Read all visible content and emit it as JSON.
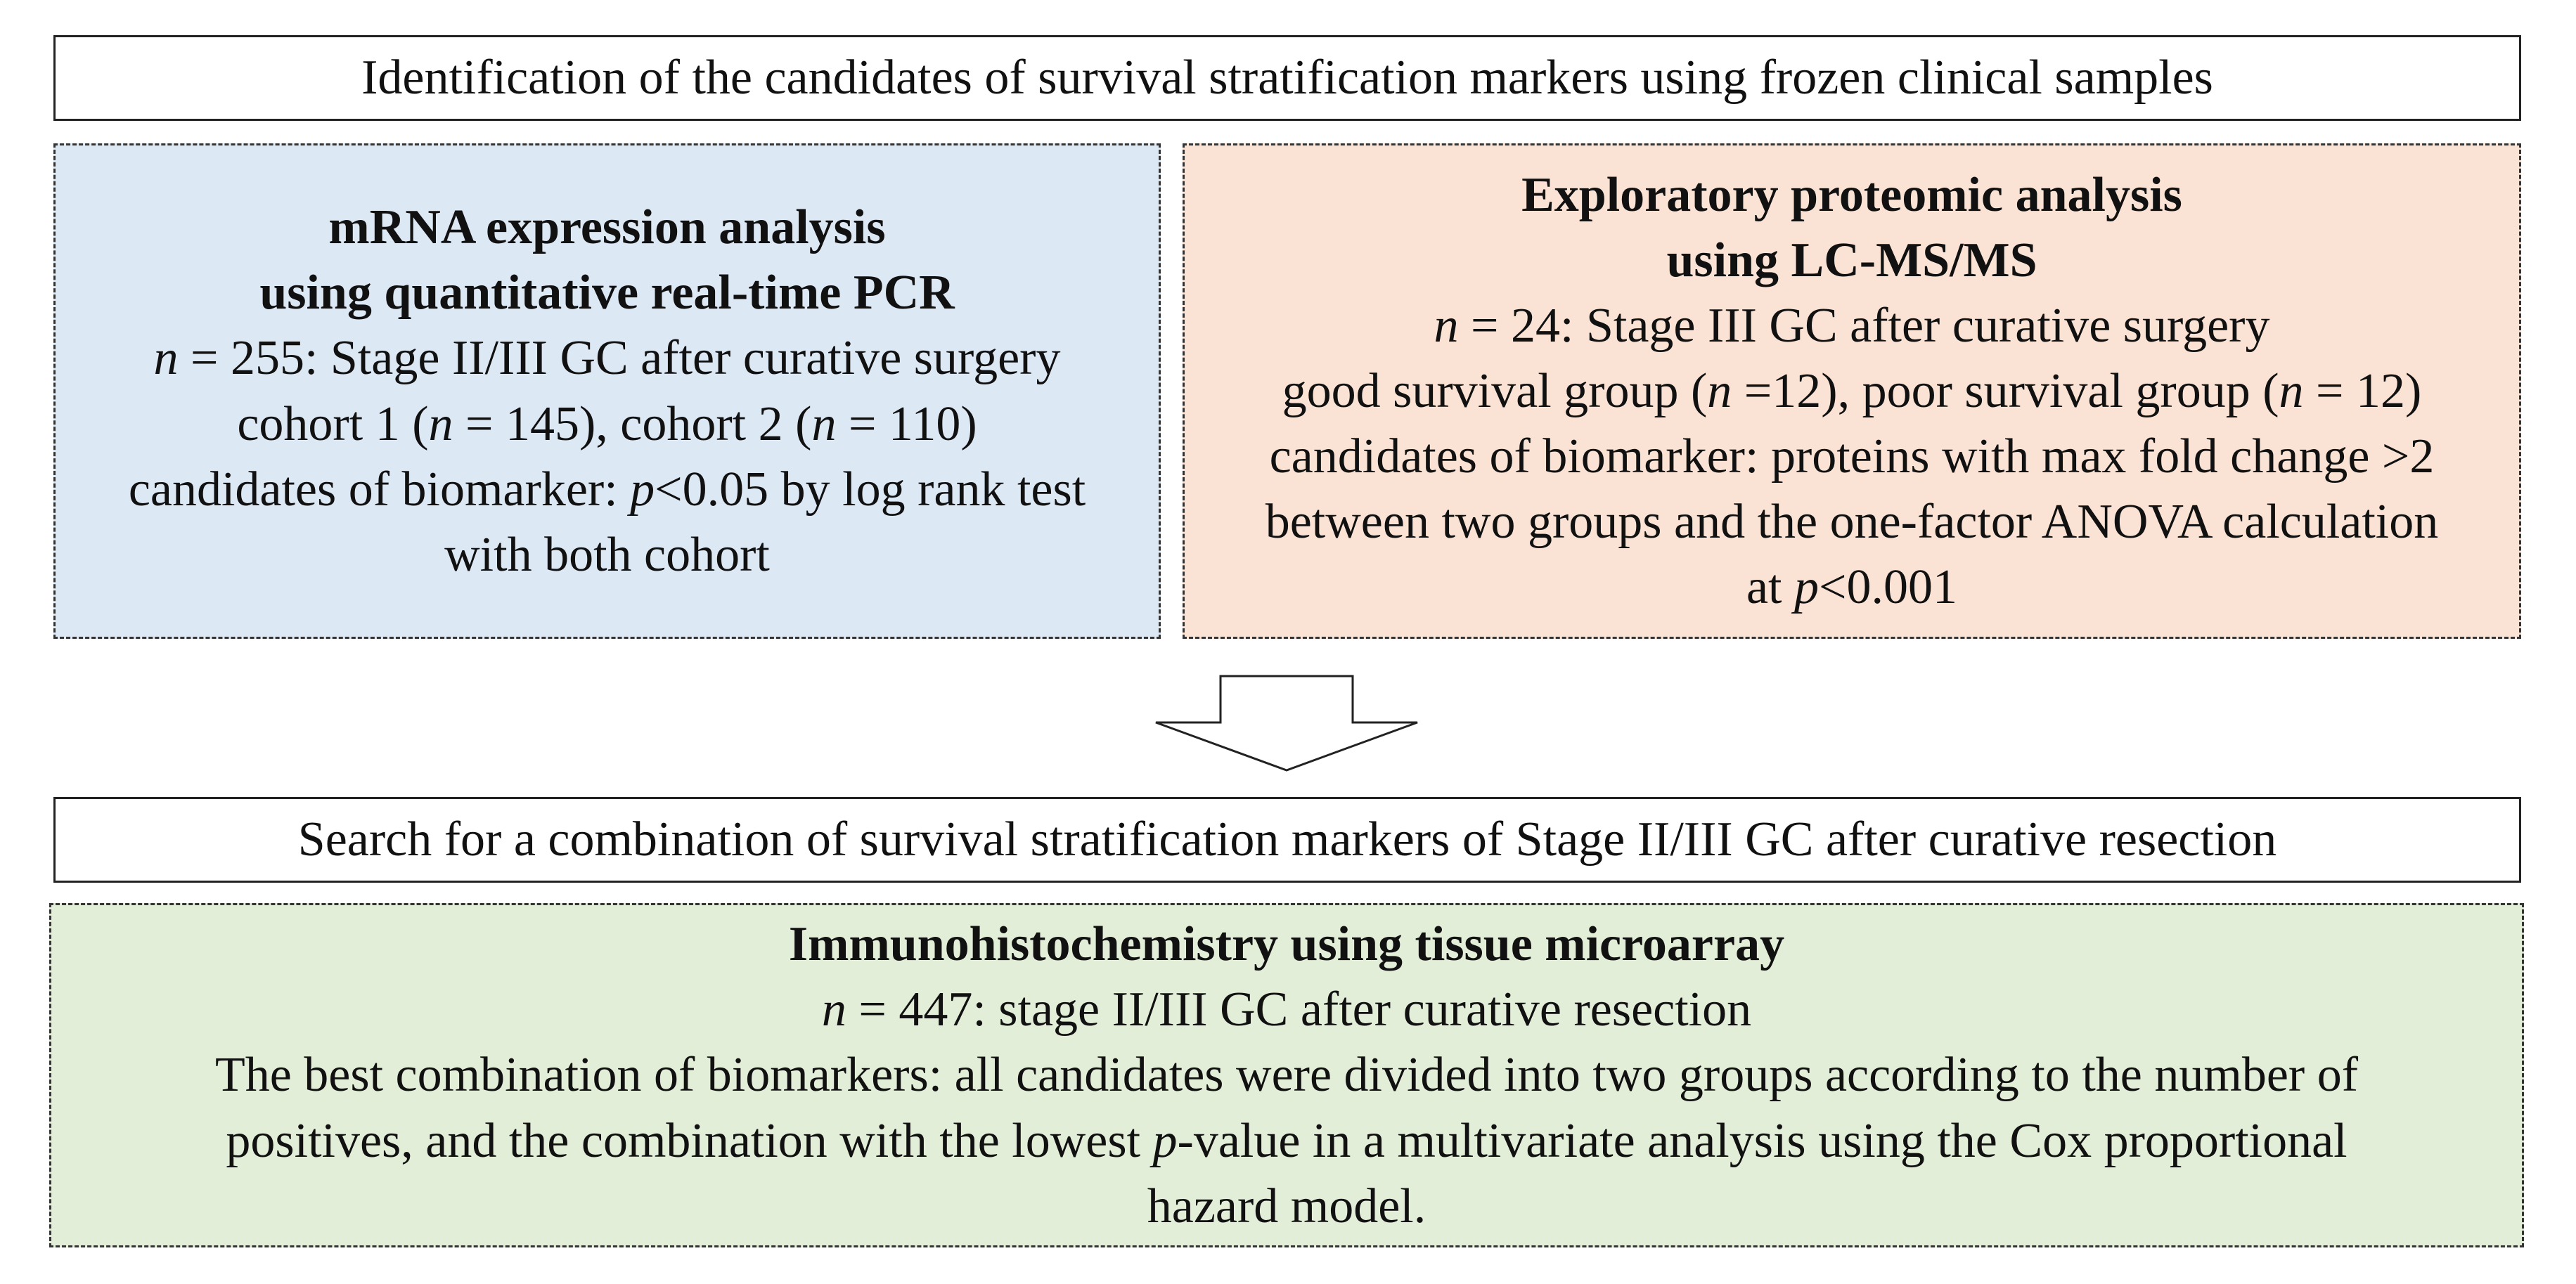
{
  "top_banner": {
    "text": "Identification of  the candidates of survival stratification markers using frozen clinical samples"
  },
  "left_panel": {
    "color": "#dde8f5",
    "heading_1": "mRNA expression analysis",
    "heading_2": "using quantitative real-time PCR",
    "n_label": "n",
    "n_rest": " = 255: Stage II/III GC after curative surgery",
    "cohort_a": "cohort 1 (",
    "cohort_n1": "n",
    "cohort_b": " = 145), cohort 2 (",
    "cohort_n2": "n",
    "cohort_c": " = 110)",
    "cand_a": "candidates of biomarker: ",
    "cand_p": "p",
    "cand_b": "<0.05 by log rank test",
    "cand_line2": "with both cohort"
  },
  "right_panel": {
    "color": "#fae3d4",
    "heading_1": "Exploratory proteomic analysis",
    "heading_2": "using LC-MS/MS",
    "n_label": "n",
    "n_rest": " = 24: Stage III GC after curative surgery",
    "groups_a": "good survival group (",
    "groups_n1": "n",
    "groups_b": " =12), poor survival group (",
    "groups_n2": "n",
    "groups_c": " = 12)",
    "cand_line1": "candidates of biomarker: proteins with max fold change >2",
    "cand_line2": "between two groups and the one-factor ANOVA calculation",
    "cand_line3_a": "at ",
    "cand_line3_p": "p",
    "cand_line3_b": "<0.001"
  },
  "bottom_banner": {
    "text": "Search for a combination of survival stratification markers of Stage II/III GC after curative resection"
  },
  "bottom_panel": {
    "color": "#e3eed8",
    "heading": "Immunohistochemistry using tissue microarray",
    "n_label": "n",
    "n_rest": " = 447: stage II/III GC after curative resection",
    "line1": "The best combination of biomarkers: all candidates were divided into two groups according to the number of",
    "line2_a": "positives, and the combination with the lowest ",
    "line2_p": "p",
    "line2_b": "-value in a multivariate analysis using the Cox proportional",
    "line3": "hazard model."
  }
}
